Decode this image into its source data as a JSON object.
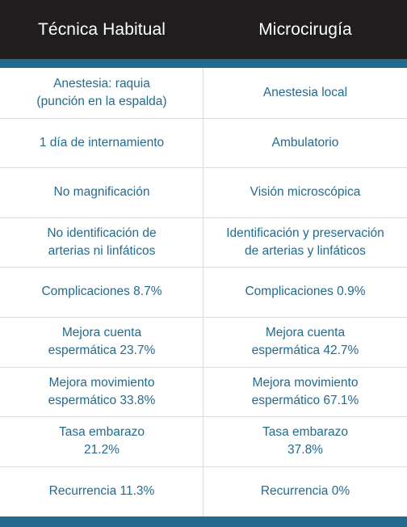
{
  "header": {
    "col1": "Técnica Habitual",
    "col2": "Microcirugía"
  },
  "colors": {
    "header_bg": "#1f1d1e",
    "accent": "#236b8e",
    "text": "#236b8e",
    "divider": "#dcdcdc"
  },
  "rows": [
    {
      "left": "Anestesia: raquia\n(punción en la espalda)",
      "right": "Anestesia local"
    },
    {
      "left": "1 día de internamiento",
      "right": "Ambulatorio"
    },
    {
      "left": "No magnificación",
      "right": "Visión microscópica"
    },
    {
      "left": "No identificación de\narterias ni linfáticos",
      "right": "Identificación y preservación\nde arterias y linfáticos"
    },
    {
      "left": "Complicaciones 8.7%",
      "right": "Complicaciones 0.9%"
    },
    {
      "left": "Mejora cuenta\nespermática 23.7%",
      "right": "Mejora cuenta\nespermática 42.7%"
    },
    {
      "left": "Mejora movimiento\nespermático 33.8%",
      "right": "Mejora movimiento\nespermático 67.1%"
    },
    {
      "left": "Tasa embarazo\n21.2%",
      "right": "Tasa embarazo\n37.8%"
    },
    {
      "left": "Recurrencia 11.3%",
      "right": "Recurrencia 0%"
    }
  ]
}
